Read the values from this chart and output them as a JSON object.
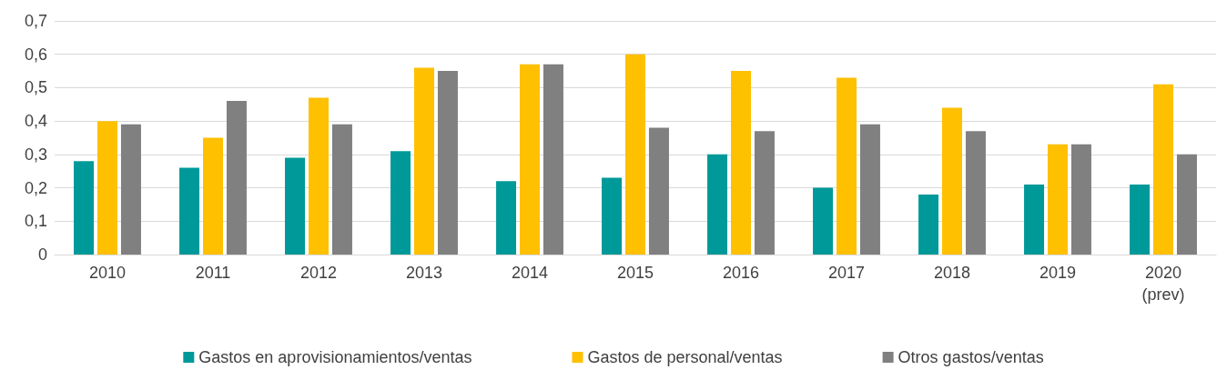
{
  "chart_data": {
    "type": "bar",
    "categories": [
      "2010",
      "2011",
      "2012",
      "2013",
      "2014",
      "2015",
      "2016",
      "2017",
      "2018",
      "2019",
      "2020\n(prev)"
    ],
    "series": [
      {
        "name": "Gastos en aprovisionamientos/ventas",
        "color": "#009999",
        "values": [
          0.28,
          0.26,
          0.29,
          0.31,
          0.22,
          0.23,
          0.3,
          0.2,
          0.18,
          0.21,
          0.21
        ]
      },
      {
        "name": "Gastos de personal/ventas",
        "color": "#ffc000",
        "values": [
          0.4,
          0.35,
          0.47,
          0.56,
          0.57,
          0.6,
          0.55,
          0.53,
          0.44,
          0.33,
          0.51
        ]
      },
      {
        "name": "Otros gastos/ventas",
        "color": "#808080",
        "values": [
          0.39,
          0.46,
          0.39,
          0.55,
          0.57,
          0.38,
          0.37,
          0.39,
          0.37,
          0.33,
          0.3
        ]
      }
    ],
    "ylim": [
      0,
      0.7
    ],
    "yticks": [
      0,
      {
        "value": 0.1,
        "label": "0,1"
      },
      {
        "value": 0.2,
        "label": "0,2"
      },
      {
        "value": 0.3,
        "label": "0,3"
      },
      {
        "value": 0.4,
        "label": "0,4"
      },
      {
        "value": 0.5,
        "label": "0,5"
      },
      {
        "value": 0.6,
        "label": "0,6"
      },
      {
        "value": 0.7,
        "label": "0,7"
      }
    ],
    "grid": "y",
    "legend": "bottom"
  }
}
